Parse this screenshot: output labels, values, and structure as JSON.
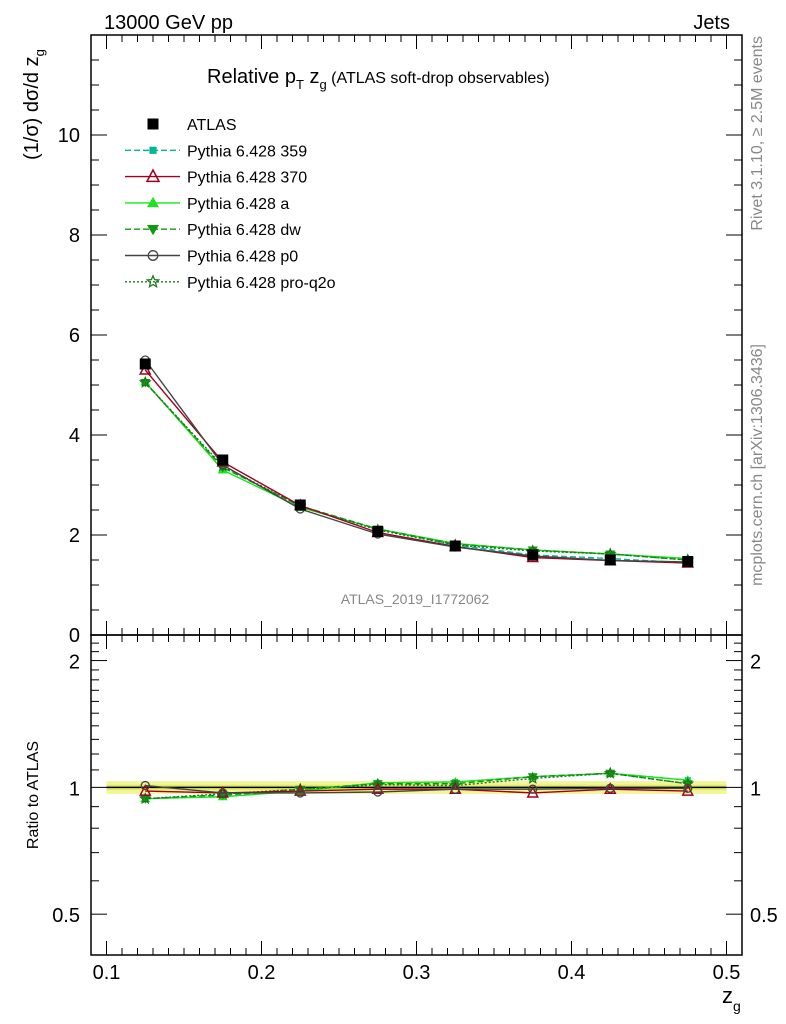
{
  "header": {
    "left": "13000 GeV pp",
    "right": "Jets"
  },
  "side_text": {
    "rivet": "Rivet 3.1.10, ≥ 2.5M events",
    "mcplots": "mcplots.cern.ch [arXiv:1306.3436]"
  },
  "watermark": "ATLAS_2019_I1772062",
  "chart_data": [
    {
      "type": "line",
      "title": "Relative pT zg (ATLAS soft-drop observables)",
      "title_parts": {
        "a": "Relative p",
        "sub1": "T",
        "b": " z",
        "sub2": "g",
        "c": " (ATLAS soft-drop observables)"
      },
      "ylabel": "(1/σ) dσ/d zg",
      "ylabel_parts": {
        "main": "(1/σ) dσ/d z",
        "sub": "g"
      },
      "xlabel": "zg",
      "xlim": [
        0.09,
        0.51
      ],
      "ylim": [
        0,
        12
      ],
      "yticks": [
        0,
        2,
        4,
        6,
        8,
        10
      ],
      "legend_position": "top-left",
      "x": [
        0.125,
        0.175,
        0.225,
        0.275,
        0.325,
        0.375,
        0.425,
        0.475
      ],
      "series": [
        {
          "name": "ATLAS",
          "color": "#000000",
          "marker": "square",
          "values": [
            5.42,
            3.5,
            2.6,
            2.07,
            1.78,
            1.6,
            1.5,
            1.47
          ]
        },
        {
          "name": "Pythia 6.428 359",
          "color": "#00b894",
          "marker": "small-square",
          "dash": "6,3",
          "values": [
            5.05,
            3.35,
            2.58,
            2.12,
            1.8,
            1.6,
            1.53,
            1.44
          ]
        },
        {
          "name": "Pythia 6.428 370",
          "color": "#a0001e",
          "marker": "open-triangle",
          "values": [
            5.3,
            3.46,
            2.59,
            2.05,
            1.77,
            1.55,
            1.49,
            1.44
          ]
        },
        {
          "name": "Pythia 6.428 a",
          "color": "#1be51b",
          "marker": "triangle",
          "values": [
            5.06,
            3.3,
            2.55,
            2.12,
            1.83,
            1.7,
            1.62,
            1.53
          ]
        },
        {
          "name": "Pythia 6.428 dw",
          "color": "#119a11",
          "marker": "triangle-down",
          "dash": "6,3",
          "values": [
            5.05,
            3.35,
            2.58,
            2.12,
            1.82,
            1.7,
            1.62,
            1.5
          ]
        },
        {
          "name": "Pythia 6.428 p0",
          "color": "#444444",
          "marker": "open-circle",
          "values": [
            5.5,
            3.4,
            2.52,
            2.02,
            1.76,
            1.58,
            1.49,
            1.46
          ]
        },
        {
          "name": "Pythia 6.428 pro-q2o",
          "color": "#1b7a1b",
          "marker": "star",
          "dash": "2,2",
          "values": [
            5.05,
            3.38,
            2.58,
            2.1,
            1.8,
            1.68,
            1.62,
            1.5
          ]
        }
      ]
    },
    {
      "type": "line",
      "ylabel": "Ratio to ATLAS",
      "xlabel": "zg",
      "xlabel_parts": {
        "main": "z",
        "sub": "g"
      },
      "xlim": [
        0.09,
        0.51
      ],
      "ylim": [
        0.4,
        2.3
      ],
      "yscale": "log",
      "yticks": [
        0.5,
        1,
        2
      ],
      "xticks": [
        0.1,
        0.2,
        0.3,
        0.4,
        0.5
      ],
      "band": {
        "color": "#f2f59a",
        "inner_color": "#d6e84a"
      },
      "series_ratio": [
        [
          0.94,
          0.955,
          0.98,
          1.025,
          1.03,
          1.06,
          1.08,
          1.04
        ],
        [
          0.98,
          0.97,
          0.98,
          0.99,
          0.99,
          0.97,
          0.99,
          0.98
        ],
        [
          0.94,
          0.95,
          0.98,
          1.025,
          1.03,
          1.06,
          1.08,
          1.04
        ],
        [
          0.94,
          0.96,
          0.99,
          1.02,
          1.02,
          1.06,
          1.08,
          1.02
        ],
        [
          1.01,
          0.97,
          0.97,
          0.975,
          0.99,
          0.99,
          0.995,
          0.995
        ],
        [
          0.94,
          0.965,
          0.99,
          1.015,
          1.01,
          1.05,
          1.08,
          1.02
        ]
      ]
    }
  ]
}
